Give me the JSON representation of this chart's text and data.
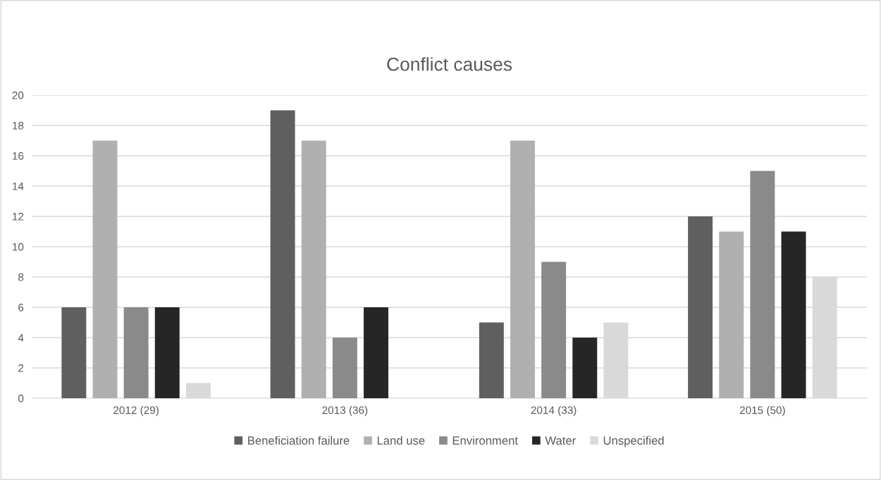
{
  "chart_data": {
    "type": "bar",
    "title": "Conflict causes",
    "categories": [
      "2012 (29)",
      "2013 (36)",
      "2014 (33)",
      "2015 (50)"
    ],
    "series": [
      {
        "name": "Beneficiation failure",
        "color": "#5f5f5f",
        "values": [
          6,
          19,
          5,
          12
        ]
      },
      {
        "name": "Land use",
        "color": "#b0b0b0",
        "values": [
          17,
          17,
          17,
          11
        ]
      },
      {
        "name": "Environment",
        "color": "#8a8a8a",
        "values": [
          6,
          4,
          9,
          15
        ]
      },
      {
        "name": "Water",
        "color": "#262626",
        "values": [
          6,
          6,
          4,
          11
        ]
      },
      {
        "name": "Unspecified",
        "color": "#d9d9d9",
        "values": [
          1,
          0,
          5,
          8
        ]
      }
    ],
    "ylim": [
      0,
      20
    ],
    "yticks": [
      0,
      2,
      4,
      6,
      8,
      10,
      12,
      14,
      16,
      18,
      20
    ],
    "grid": "y",
    "legend": "bottom"
  }
}
